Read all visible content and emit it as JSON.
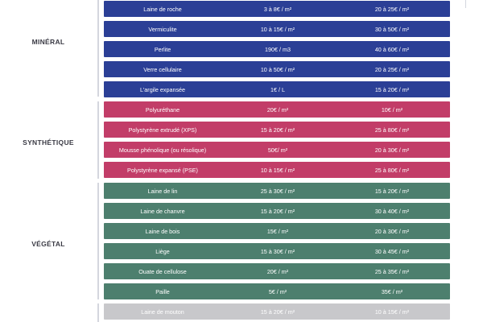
{
  "colors": {
    "mineral": "#2b3f96",
    "synthetique": "#c23d68",
    "vegetal": "#4d7f6e",
    "animal": "#c8c8cb",
    "bracket": "#d4d6de",
    "label": "#3a3a44"
  },
  "categories": [
    {
      "label": "MINÉRAL",
      "color_key": "mineral",
      "rows": [
        {
          "name": "Laine de roche",
          "price1": "3 à 8€ / m²",
          "price2": "20 à 25€ / m²"
        },
        {
          "name": "Vermiculite",
          "price1": "10 à 15€ / m²",
          "price2": "30 à 50€ / m²"
        },
        {
          "name": "Perlite",
          "price1": "190€ / m3",
          "price2": "40 à 60€ / m²"
        },
        {
          "name": "Verre cellulaire",
          "price1": "10 à 50€ / m²",
          "price2": "20 à 25€ / m²"
        },
        {
          "name": "L'argile expansée",
          "price1": "1€ / L",
          "price2": "15 à 20€ / m²"
        }
      ]
    },
    {
      "label": "SYNTHÉTIQUE",
      "color_key": "synthetique",
      "rows": [
        {
          "name": "Polyuréthane",
          "price1": "20€ / m²",
          "price2": "10€ / m²"
        },
        {
          "name": "Polystyrène extrudé (XPS)",
          "price1": "15 à 20€ / m²",
          "price2": "25 à 80€ / m²"
        },
        {
          "name": "Mousse phénolique (ou résolique)",
          "price1": "50€/ m²",
          "price2": "20 à 30€ / m²"
        },
        {
          "name": "Polystyrène expansé (PSE)",
          "price1": "10 à 15€ / m²",
          "price2": "25 à 80€ / m²"
        }
      ]
    },
    {
      "label": "VÉGÉTAL",
      "color_key": "vegetal",
      "rows": [
        {
          "name": "Laine de lin",
          "price1": "25 à 30€ / m²",
          "price2": "15 à 20€ / m²"
        },
        {
          "name": "Laine de chanvre",
          "price1": "15 à 20€ / m²",
          "price2": "30 à 40€ / m²"
        },
        {
          "name": "Laine de bois",
          "price1": "15€ / m²",
          "price2": "20 à 30€ / m²"
        },
        {
          "name": "Liège",
          "price1": "15 à 30€ / m²",
          "price2": "30 à 45€ / m²"
        },
        {
          "name": "Ouate de cellulose",
          "price1": "20€ / m²",
          "price2": "25 à 35€ / m²"
        },
        {
          "name": "Paille",
          "price1": "5€ / m²",
          "price2": "35€ / m²"
        }
      ]
    },
    {
      "label": "",
      "color_key": "animal",
      "rows": [
        {
          "name": "Laine de mouton",
          "price1": "15 à 20€ / m²",
          "price2": "10 à 15€ / m²"
        }
      ]
    }
  ]
}
